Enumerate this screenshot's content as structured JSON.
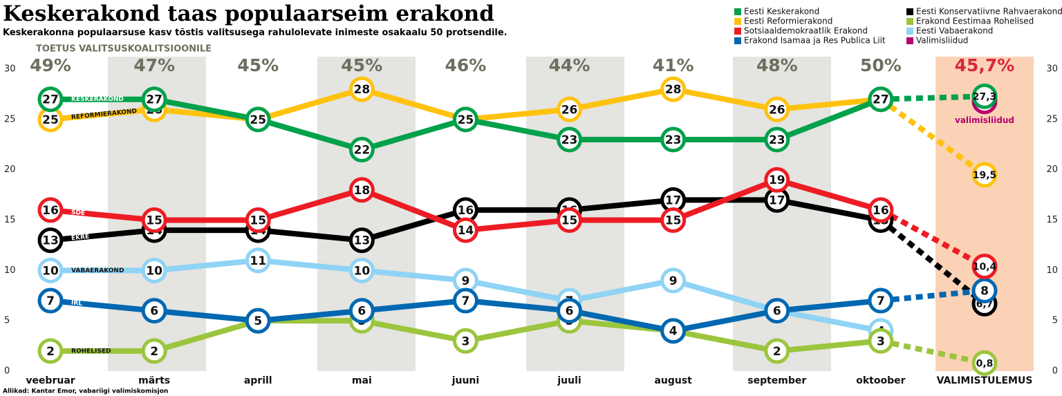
{
  "chart_data": {
    "type": "line",
    "title": "Keskerakond taas populaarseim erakond",
    "subtitle": "Keskerakonna populaarsuse kasv tõstis valitsusega rahulolevate inimeste osakaalu 50 protsendile.",
    "source": "Allikad: Kantar Emor, vabariigi valimiskomisjon",
    "categories": [
      "veebruar",
      "märts",
      "aprill",
      "mai",
      "juuni",
      "juuli",
      "august",
      "september",
      "oktoober",
      "VALIMISTULEMUS"
    ],
    "support": {
      "label": "TOETUS VALITSUSKOALITSIOONILE",
      "values": [
        49,
        47,
        45,
        45,
        46,
        44,
        41,
        48,
        50,
        45.7
      ],
      "value_labels": [
        "49%",
        "47%",
        "45%",
        "45%",
        "46%",
        "44%",
        "41%",
        "48%",
        "50%",
        "45,7%"
      ]
    },
    "ylim": [
      0,
      30
    ],
    "yticks": [
      0,
      5,
      10,
      15,
      20,
      25,
      30
    ],
    "series": [
      {
        "name": "Eesti Keskerakond",
        "line_label": "KESKERAKOND",
        "color": "#00a14b",
        "values": [
          27,
          27,
          25,
          22,
          25,
          23,
          23,
          23,
          27,
          27.3
        ],
        "value_labels": [
          "27",
          "27",
          "25",
          "22",
          "25",
          "23",
          "23",
          "23",
          "27",
          "27,3"
        ]
      },
      {
        "name": "Eesti Reformierakond",
        "line_label": "REFORMIERAKOND",
        "color": "#ffc20e",
        "values": [
          25,
          26,
          25,
          28,
          25,
          26,
          28,
          26,
          27,
          19.5
        ],
        "value_labels": [
          "25",
          "26",
          "25",
          "28",
          "25",
          "26",
          "28",
          "26",
          "27",
          "19,5"
        ]
      },
      {
        "name": "Sotsiaaldemokraatlik Erakond",
        "line_label": "SDE",
        "color": "#ed1c24",
        "values": [
          16,
          15,
          15,
          18,
          14,
          15,
          15,
          19,
          16,
          10.4
        ],
        "value_labels": [
          "16",
          "15",
          "15",
          "18",
          "14",
          "15",
          "15",
          "19",
          "16",
          "10,4"
        ]
      },
      {
        "name": "Erakond Isamaa ja Res Publica Liit",
        "line_label": "IRL",
        "color": "#0067b1",
        "values": [
          7,
          6,
          5,
          6,
          7,
          6,
          4,
          6,
          7,
          8
        ],
        "value_labels": [
          "7",
          "6",
          "5",
          "6",
          "7",
          "6",
          "4",
          "6",
          "7",
          "8"
        ]
      },
      {
        "name": "Eesti Konservatiivne Rahvaerakond",
        "line_label": "EKRE",
        "color": "#000000",
        "values": [
          13,
          14,
          14,
          13,
          16,
          16,
          17,
          17,
          15,
          6.7
        ],
        "value_labels": [
          "13",
          "14",
          "14",
          "13",
          "16",
          "16",
          "17",
          "17",
          "15",
          "6,7"
        ]
      },
      {
        "name": "Erakond Eestimaa Rohelised",
        "line_label": "ROHELISED",
        "color": "#9bc53d",
        "values": [
          2,
          2,
          5,
          5,
          3,
          5,
          4,
          2,
          3,
          0.8
        ],
        "value_labels": [
          "2",
          "2",
          "5",
          "5",
          "3",
          "5",
          "4",
          "2",
          "3",
          "0,8"
        ]
      },
      {
        "name": "Eesti Vabaerakond",
        "line_label": "VABAERAKOND",
        "color": "#8fd3f5",
        "values": [
          10,
          10,
          11,
          10,
          9,
          7,
          9,
          6,
          4,
          null
        ],
        "value_labels": [
          "10",
          "10",
          "11",
          "10",
          "9",
          "7",
          "9",
          "6",
          "4",
          null
        ]
      },
      {
        "name": "Valimisliidud",
        "line_label": "valimisliidud",
        "color": "#b5006e",
        "values": [
          null,
          null,
          null,
          null,
          null,
          null,
          null,
          null,
          null,
          26.8
        ],
        "value_labels": [
          null,
          null,
          null,
          null,
          null,
          null,
          null,
          null,
          null,
          "26,8"
        ]
      }
    ]
  }
}
